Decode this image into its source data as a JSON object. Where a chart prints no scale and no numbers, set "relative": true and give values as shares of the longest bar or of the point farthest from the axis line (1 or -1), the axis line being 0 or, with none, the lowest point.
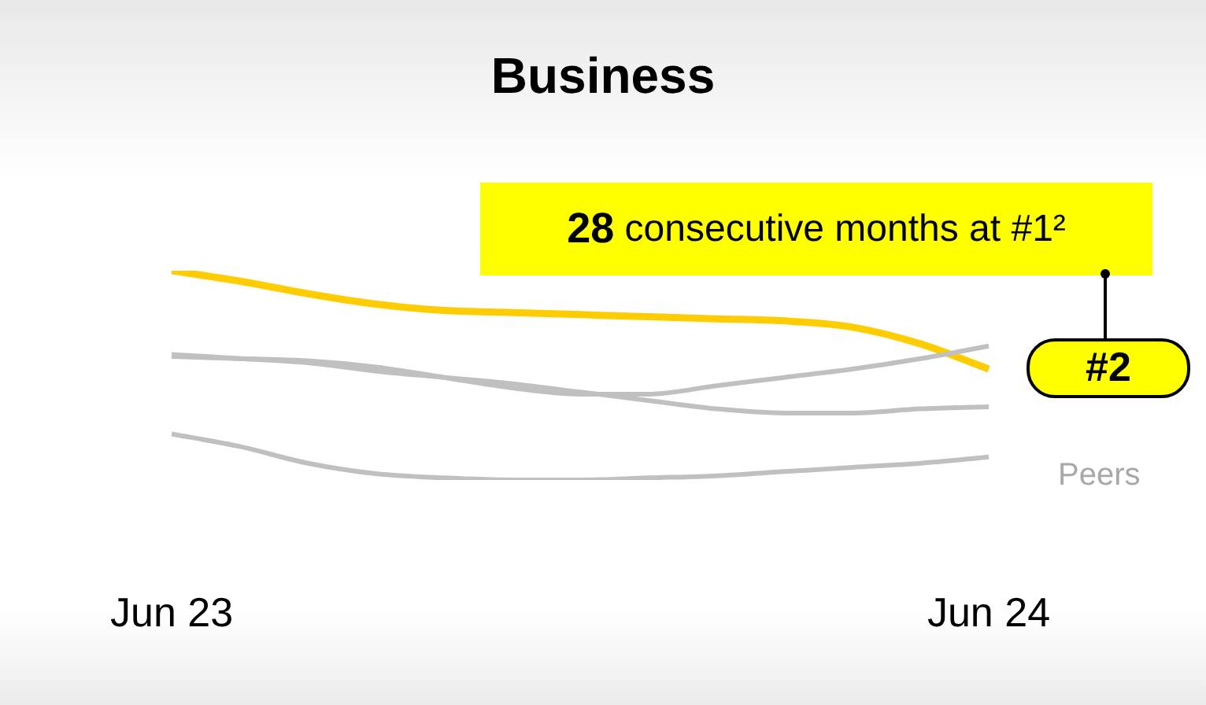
{
  "chart_data": {
    "type": "line",
    "title": "Business",
    "relative": true,
    "marker": "none",
    "grid": false,
    "legend": false,
    "tick_labels": "x",
    "categories": [
      "Jun 23",
      null,
      null,
      null,
      null,
      null,
      null,
      null,
      null,
      null,
      null,
      null,
      "Jun 24"
    ],
    "series": [
      {
        "color": "#c0c0c0",
        "values": [
          0.59,
          0.58,
          0.57,
          0.54,
          0.49,
          0.44,
          0.41,
          0.41,
          0.45,
          0.49,
          0.53,
          0.58,
          0.64
        ]
      },
      {
        "color": "#c0c0c0",
        "values": [
          0.6,
          0.58,
          0.56,
          0.52,
          0.49,
          0.46,
          0.42,
          0.38,
          0.34,
          0.32,
          0.32,
          0.34,
          0.35
        ]
      },
      {
        "color": "#c0c0c0",
        "values": [
          0.22,
          0.16,
          0.08,
          0.03,
          0.01,
          0,
          0,
          0.01,
          0.02,
          0.04,
          0.06,
          0.08,
          0.11
        ]
      },
      {
        "color": "#ffcc00",
        "values": [
          1.0,
          0.95,
          0.89,
          0.84,
          0.81,
          0.8,
          0.79,
          0.78,
          0.77,
          0.76,
          0.73,
          0.65,
          0.53
        ]
      }
    ],
    "annotations": [
      "28 consecutive months at #1²",
      {
        "text": "#2",
        "x": "Jun 24",
        "y": 0.53
      },
      "Peers"
    ]
  }
}
